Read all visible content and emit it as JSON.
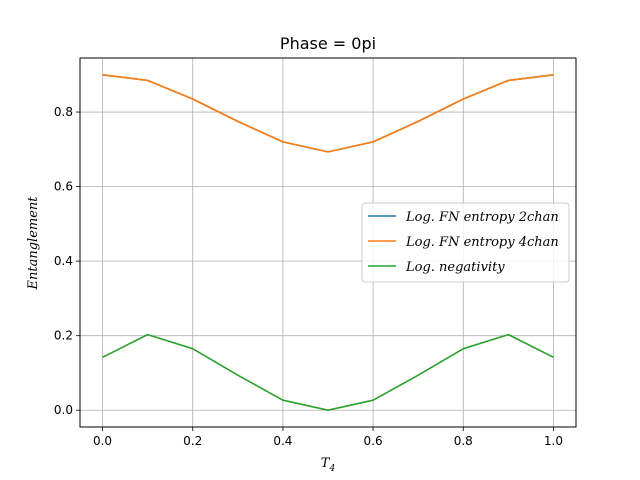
{
  "chart_data": {
    "type": "line",
    "title": "Phase = 0pi",
    "xlabel_base": "T",
    "xlabel_sub": "4",
    "ylabel": "Entanglement",
    "x": [
      0.0,
      0.1,
      0.2,
      0.3,
      0.4,
      0.5,
      0.6,
      0.7,
      0.8,
      0.9,
      1.0
    ],
    "xlim": [
      -0.05,
      1.05
    ],
    "ylim": [
      -0.045,
      0.945
    ],
    "xticks": [
      0.0,
      0.2,
      0.4,
      0.6,
      0.8,
      1.0
    ],
    "xtick_labels": [
      "0.0",
      "0.2",
      "0.4",
      "0.6",
      "0.8",
      "1.0"
    ],
    "yticks": [
      0.0,
      0.2,
      0.4,
      0.6,
      0.8
    ],
    "ytick_labels": [
      "0.0",
      "0.2",
      "0.4",
      "0.6",
      "0.8"
    ],
    "grid": true,
    "legend_position": "center-right",
    "series": [
      {
        "name": "Log.FN entropy 2chan",
        "legend_label": "Log. FN entropy 2chan",
        "color": "#1f77b4",
        "values": [
          0.9,
          0.885,
          0.835,
          0.775,
          0.72,
          0.693,
          0.72,
          0.775,
          0.835,
          0.885,
          0.9
        ]
      },
      {
        "name": "Log.FN entropy 4chan",
        "legend_label": "Log. FN entropy 4chan",
        "color": "#ff7f0e",
        "values": [
          0.9,
          0.885,
          0.835,
          0.775,
          0.72,
          0.693,
          0.72,
          0.775,
          0.835,
          0.885,
          0.9
        ]
      },
      {
        "name": "Log.negativity",
        "legend_label": "Log. negativity",
        "color": "#2ca02c",
        "values": [
          0.142,
          0.203,
          0.165,
          0.094,
          0.027,
          0.0,
          0.027,
          0.094,
          0.165,
          0.203,
          0.142
        ]
      }
    ]
  }
}
